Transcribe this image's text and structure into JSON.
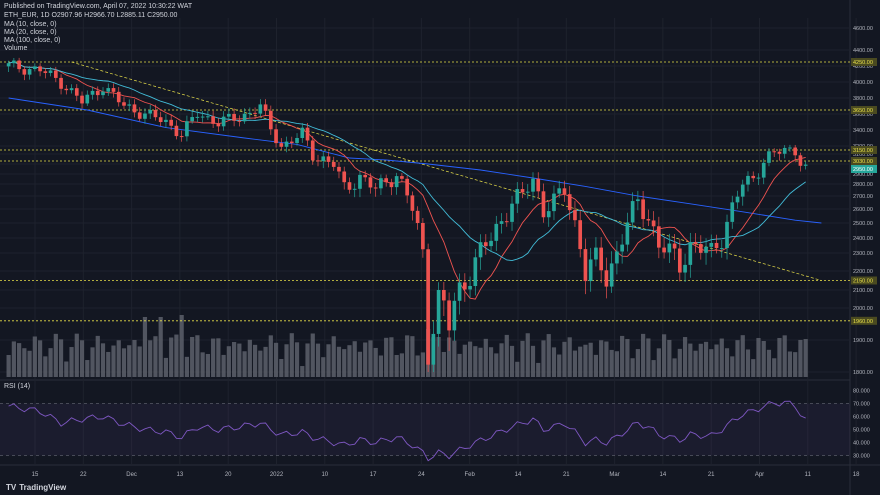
{
  "header": {
    "published": "Published on TradingView.com, April 07, 2022 10:30:22 WAT",
    "symbol_line": "ETH_EUR, 1D  O2907.96 H2966.70 L2885.11 C2950.00",
    "indicators": [
      "MA (10, close, 0)",
      "MA (20, close, 0)",
      "MA (100, close, 0)",
      "Volume"
    ],
    "rsi_label": "RSI (14)"
  },
  "brand": {
    "logo": "TV",
    "name": "TradingView"
  },
  "colors": {
    "background": "#131722",
    "up": "#26a69a",
    "down": "#ef5350",
    "ma10": "#ef5350",
    "ma20": "#42bcd8",
    "ma100": "#2962ff",
    "level": "#e8e04a",
    "volume": "#5d606b",
    "rsi": "#7e57c2"
  },
  "chart_data": [
    {
      "type": "candlestick",
      "x_ticks": [
        "15",
        "22",
        "Dec",
        "13",
        "20",
        "2022",
        "10",
        "17",
        "24",
        "Feb",
        "14",
        "21",
        "Mar",
        "14",
        "21",
        "Apr",
        "11",
        "18"
      ],
      "y_ticks": [
        "4600.00",
        "4400.00",
        "4200.00",
        "4000.00",
        "3800.00",
        "3600.00",
        "3400.00",
        "3200.00",
        "3100.00",
        "3000.00",
        "2900.00",
        "2800.00",
        "2700.00",
        "2600.00",
        "2500.00",
        "2400.00",
        "2300.00",
        "2200.00",
        "2100.00",
        "2000.00",
        "1900.00",
        "1800.00"
      ],
      "levels": [
        {
          "value": 4250,
          "label": "4250.00"
        },
        {
          "value": 3650,
          "label": "3650.00"
        },
        {
          "value": 3150,
          "label": "3150.00"
        },
        {
          "value": 3030,
          "label": "3030.00"
        },
        {
          "value": 2150,
          "label": "2150.00"
        },
        {
          "value": 1960,
          "label": "1960.00"
        }
      ],
      "last_price": {
        "value": 2950,
        "label": "2950.00"
      },
      "close_path": [
        [
          0,
          4200
        ],
        [
          6,
          4150
        ],
        [
          10,
          4000
        ],
        [
          14,
          3750
        ],
        [
          18,
          3950
        ],
        [
          22,
          3700
        ],
        [
          26,
          3600
        ],
        [
          30,
          3500
        ],
        [
          33,
          3350
        ],
        [
          36,
          3600
        ],
        [
          40,
          3500
        ],
        [
          44,
          3550
        ],
        [
          48,
          3700
        ],
        [
          50,
          3400
        ],
        [
          52,
          3200
        ],
        [
          56,
          3350
        ],
        [
          58,
          3100
        ],
        [
          62,
          3000
        ],
        [
          64,
          2750
        ],
        [
          67,
          2880
        ],
        [
          70,
          2750
        ],
        [
          74,
          2900
        ],
        [
          77,
          2600
        ],
        [
          79,
          2300
        ],
        [
          80,
          1900
        ],
        [
          82,
          2050
        ],
        [
          84,
          1950
        ],
        [
          86,
          2100
        ],
        [
          88,
          2200
        ],
        [
          92,
          2400
        ],
        [
          96,
          2650
        ],
        [
          98,
          2700
        ],
        [
          100,
          2850
        ],
        [
          102,
          2600
        ],
        [
          104,
          2650
        ],
        [
          106,
          2750
        ],
        [
          108,
          2500
        ],
        [
          110,
          2200
        ],
        [
          112,
          2250
        ],
        [
          114,
          2180
        ],
        [
          116,
          2300
        ],
        [
          118,
          2500
        ],
        [
          120,
          2650
        ],
        [
          122,
          2550
        ],
        [
          124,
          2350
        ],
        [
          126,
          2300
        ],
        [
          128,
          2250
        ],
        [
          130,
          2350
        ],
        [
          134,
          2300
        ],
        [
          136,
          2420
        ],
        [
          138,
          2600
        ],
        [
          140,
          2800
        ],
        [
          142,
          2850
        ],
        [
          144,
          3050
        ],
        [
          146,
          3100
        ],
        [
          148,
          3150
        ],
        [
          150,
          3150
        ],
        [
          152,
          2950
        ]
      ],
      "ma100": [
        [
          0,
          3800
        ],
        [
          15,
          3650
        ],
        [
          30,
          3430
        ],
        [
          45,
          3300
        ],
        [
          55,
          3220
        ],
        [
          65,
          3060
        ],
        [
          72,
          3040
        ],
        [
          80,
          3000
        ],
        [
          90,
          2940
        ],
        [
          100,
          2860
        ],
        [
          110,
          2780
        ],
        [
          120,
          2700
        ],
        [
          130,
          2640
        ],
        [
          140,
          2580
        ],
        [
          150,
          2520
        ],
        [
          155,
          2500
        ]
      ],
      "trendline": [
        [
          12,
          4250
        ],
        [
          155,
          2150
        ]
      ]
    },
    {
      "type": "rsi",
      "title": "RSI (14)",
      "y_ticks": [
        "80.000",
        "70.000",
        "60.000",
        "50.000",
        "40.000",
        "30.000"
      ],
      "band": [
        30,
        70
      ],
      "values": [
        [
          0,
          68
        ],
        [
          6,
          64
        ],
        [
          10,
          55
        ],
        [
          14,
          58
        ],
        [
          18,
          60
        ],
        [
          22,
          54
        ],
        [
          26,
          50
        ],
        [
          30,
          48
        ],
        [
          33,
          44
        ],
        [
          36,
          52
        ],
        [
          40,
          50
        ],
        [
          44,
          52
        ],
        [
          48,
          55
        ],
        [
          50,
          50
        ],
        [
          52,
          46
        ],
        [
          56,
          48
        ],
        [
          58,
          44
        ],
        [
          62,
          40
        ],
        [
          64,
          38
        ],
        [
          67,
          42
        ],
        [
          70,
          40
        ],
        [
          74,
          44
        ],
        [
          77,
          38
        ],
        [
          79,
          32
        ],
        [
          80,
          28
        ],
        [
          82,
          32
        ],
        [
          84,
          30
        ],
        [
          86,
          34
        ],
        [
          88,
          38
        ],
        [
          92,
          45
        ],
        [
          96,
          52
        ],
        [
          98,
          55
        ],
        [
          100,
          58
        ],
        [
          102,
          50
        ],
        [
          104,
          52
        ],
        [
          106,
          55
        ],
        [
          108,
          48
        ],
        [
          110,
          40
        ],
        [
          112,
          42
        ],
        [
          114,
          40
        ],
        [
          116,
          44
        ],
        [
          118,
          50
        ],
        [
          120,
          55
        ],
        [
          122,
          52
        ],
        [
          124,
          46
        ],
        [
          126,
          44
        ],
        [
          128,
          42
        ],
        [
          130,
          46
        ],
        [
          134,
          45
        ],
        [
          136,
          50
        ],
        [
          138,
          56
        ],
        [
          140,
          62
        ],
        [
          142,
          64
        ],
        [
          144,
          68
        ],
        [
          146,
          70
        ],
        [
          148,
          71
        ],
        [
          150,
          68
        ],
        [
          152,
          57
        ]
      ]
    }
  ]
}
